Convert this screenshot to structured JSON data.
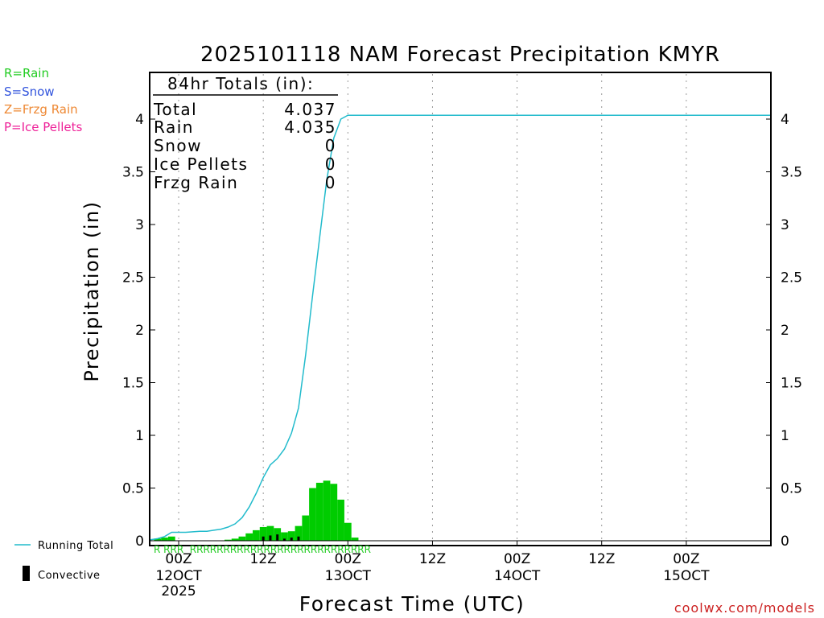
{
  "chart_data": {
    "type": "bar",
    "title": "2025101118 NAM Forecast Precipitation KMYR",
    "xlabel": "Forecast Time (UTC)",
    "ylabel": "Precipitation (in)",
    "ylim": [
      0,
      4.4
    ],
    "xlim_hours": [
      -4,
      84
    ],
    "y_ticks": [
      0,
      0.5,
      1,
      1.5,
      2,
      2.5,
      3,
      3.5,
      4
    ],
    "y_tick_labels": [
      "0",
      "0.5",
      "1",
      "1.5",
      "2",
      "2.5",
      "3",
      "3.5",
      "4"
    ],
    "x_ticks": [
      {
        "hour": 0,
        "label": "00Z",
        "date": "12OCT",
        "year": "2025"
      },
      {
        "hour": 12,
        "label": "12Z",
        "date": "",
        "year": ""
      },
      {
        "hour": 24,
        "label": "00Z",
        "date": "13OCT",
        "year": ""
      },
      {
        "hour": 36,
        "label": "12Z",
        "date": "",
        "year": ""
      },
      {
        "hour": 48,
        "label": "00Z",
        "date": "14OCT",
        "year": ""
      },
      {
        "hour": 60,
        "label": "12Z",
        "date": "",
        "year": ""
      },
      {
        "hour": 72,
        "label": "00Z",
        "date": "15OCT",
        "year": ""
      }
    ],
    "totals": {
      "header": "84hr Totals (in):",
      "rows": [
        {
          "label": "Total",
          "value": "4.037"
        },
        {
          "label": "Rain",
          "value": "4.035"
        },
        {
          "label": "Snow",
          "value": "0"
        },
        {
          "label": "Ice Pellets",
          "value": "0"
        },
        {
          "label": "Frzg Rain",
          "value": "0"
        }
      ]
    },
    "type_legend": [
      {
        "text": "R=Rain",
        "color": "#22cc22"
      },
      {
        "text": "S=Snow",
        "color": "#3355dd"
      },
      {
        "text": "Z=Frzg Rain",
        "color": "#ee8833"
      },
      {
        "text": "P=Ice Pellets",
        "color": "#ee2299"
      }
    ],
    "series_legend": {
      "running_total": "Running Total",
      "convective": "Convective"
    },
    "precip_type_labels": "R RRR  RRRRRRRRRRRRRRRRRRRRRRRRRRR",
    "credit": "coolwx.com/models",
    "colors": {
      "bars": "#00cc00",
      "convective": "#000000",
      "running_total": "#22bbcc",
      "credit": "#cc2222",
      "grid": "#999999"
    },
    "series": [
      {
        "name": "Hourly Precipitation",
        "hours": [
          -3,
          -2,
          -1,
          0,
          1,
          2,
          3,
          4,
          5,
          6,
          7,
          8,
          9,
          10,
          11,
          12,
          13,
          14,
          15,
          16,
          17,
          18,
          19,
          20,
          21,
          22,
          23,
          24,
          25
        ],
        "values": [
          0.02,
          0.03,
          0.04,
          0,
          0,
          0,
          0,
          0,
          0,
          0,
          0.01,
          0.02,
          0.04,
          0.07,
          0.1,
          0.13,
          0.14,
          0.12,
          0.08,
          0.09,
          0.14,
          0.24,
          0.5,
          0.55,
          0.57,
          0.54,
          0.39,
          0.17,
          0.03
        ]
      },
      {
        "name": "Convective",
        "hours": [
          12,
          13,
          14,
          15,
          16,
          17
        ],
        "values": [
          0.04,
          0.05,
          0.06,
          0.02,
          0.03,
          0.04
        ]
      },
      {
        "name": "Running Total",
        "hours": [
          -4,
          -3,
          -2,
          -1,
          0,
          1,
          2,
          3,
          4,
          5,
          6,
          7,
          8,
          9,
          10,
          11,
          12,
          13,
          14,
          15,
          16,
          17,
          18,
          19,
          20,
          21,
          22,
          23,
          24,
          25,
          26,
          30,
          40,
          50,
          60,
          70,
          80,
          84
        ],
        "values": [
          0.01,
          0.02,
          0.04,
          0.08,
          0.08,
          0.08,
          0.085,
          0.09,
          0.09,
          0.1,
          0.11,
          0.13,
          0.16,
          0.22,
          0.32,
          0.45,
          0.6,
          0.72,
          0.78,
          0.87,
          1.02,
          1.26,
          1.76,
          2.33,
          2.88,
          3.42,
          3.82,
          4.0,
          4.037,
          4.037,
          4.037,
          4.037,
          4.037,
          4.037,
          4.037,
          4.037,
          4.037,
          4.037
        ]
      }
    ]
  }
}
